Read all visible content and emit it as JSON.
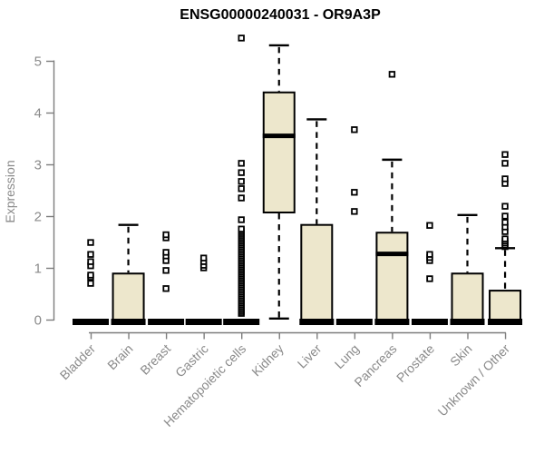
{
  "chart": {
    "title": "ENSG00000240031 - OR9A3P",
    "ylabel": "Expression",
    "colors": {
      "box_fill": "#EDE7CC",
      "box_stroke": "#000000",
      "median": "#000000",
      "whisker": "#000000",
      "outlier_stroke": "#000000",
      "outlier_fill": "#ffffff",
      "axis": "#7d7d7d",
      "axis_text": "#8a8a8a",
      "title_text": "#000000",
      "background": "#ffffff"
    }
  },
  "chart_data": {
    "type": "boxplot",
    "title": "ENSG00000240031 - OR9A3P",
    "xlabel": "",
    "ylabel": "Expression",
    "ylim": [
      0,
      5.5
    ],
    "yticks": [
      0,
      1,
      2,
      3,
      4,
      5
    ],
    "grid": false,
    "legend": "none",
    "categories": [
      "Bladder",
      "Brain",
      "Breast",
      "Gastric",
      "Hematopoietic cells",
      "Kidney",
      "Liver",
      "Lung",
      "Pancreas",
      "Prostate",
      "Skin",
      "Unknown / Other"
    ],
    "boxes": [
      {
        "category": "Bladder",
        "q1": 0,
        "median": 0,
        "q3": 0,
        "whisker_low": 0,
        "whisker_high": 0,
        "zero_bar": true,
        "outliers": [
          0.7,
          0.82,
          0.86,
          1.04,
          1.12,
          1.26,
          1.49
        ]
      },
      {
        "category": "Brain",
        "q1": 0,
        "median": 0,
        "q3": 0.89,
        "whisker_low": 0,
        "whisker_high": 1.83,
        "zero_bar": true,
        "outliers": []
      },
      {
        "category": "Breast",
        "q1": 0,
        "median": 0,
        "q3": 0,
        "whisker_low": 0,
        "whisker_high": 0,
        "zero_bar": true,
        "outliers": [
          0.6,
          0.95,
          1.14,
          1.23,
          1.3,
          1.58,
          1.64
        ]
      },
      {
        "category": "Gastric",
        "q1": 0,
        "median": 0,
        "q3": 0,
        "whisker_low": 0,
        "whisker_high": 0,
        "zero_bar": true,
        "outliers": [
          1.0,
          1.05,
          1.12,
          1.19
        ]
      },
      {
        "category": "Hematopoietic cells",
        "q1": 0,
        "median": 0,
        "q3": 0,
        "whisker_low": 0,
        "whisker_high": 0,
        "zero_bar": true,
        "outliers": [
          1.93,
          2.35,
          2.53,
          2.67,
          2.84,
          3.02,
          5.44
        ],
        "outliers_dense": {
          "min": 0.12,
          "max": 1.75,
          "count": 48
        }
      },
      {
        "category": "Kidney",
        "q1": 2.07,
        "median": 3.55,
        "q3": 4.39,
        "whisker_low": 0.02,
        "whisker_high": 5.3,
        "zero_bar": false,
        "outliers": []
      },
      {
        "category": "Liver",
        "q1": 0,
        "median": 0,
        "q3": 1.83,
        "whisker_low": 0,
        "whisker_high": 3.87,
        "zero_bar": true,
        "outliers": []
      },
      {
        "category": "Lung",
        "q1": 0,
        "median": 0,
        "q3": 0,
        "whisker_low": 0,
        "whisker_high": 0,
        "zero_bar": true,
        "outliers": [
          2.09,
          2.46,
          3.67
        ]
      },
      {
        "category": "Pancreas",
        "q1": 0,
        "median": 1.27,
        "q3": 1.68,
        "whisker_low": 0,
        "whisker_high": 3.09,
        "zero_bar": true,
        "outliers": [
          4.74
        ]
      },
      {
        "category": "Prostate",
        "q1": 0,
        "median": 0,
        "q3": 0,
        "whisker_low": 0,
        "whisker_high": 0,
        "zero_bar": true,
        "outliers": [
          0.79,
          1.14,
          1.2,
          1.26,
          1.82
        ]
      },
      {
        "category": "Skin",
        "q1": 0,
        "median": 0,
        "q3": 0.89,
        "whisker_low": 0,
        "whisker_high": 2.02,
        "zero_bar": true,
        "outliers": []
      },
      {
        "category": "Unknown / Other",
        "q1": 0,
        "median": 0,
        "q3": 0.56,
        "whisker_low": 0,
        "whisker_high": 1.38,
        "zero_bar": true,
        "outliers": [
          1.41,
          1.44,
          1.48,
          1.52,
          1.56,
          1.7,
          1.79,
          1.88,
          2.0,
          2.19,
          2.63,
          2.72,
          3.02,
          3.19
        ]
      }
    ]
  }
}
